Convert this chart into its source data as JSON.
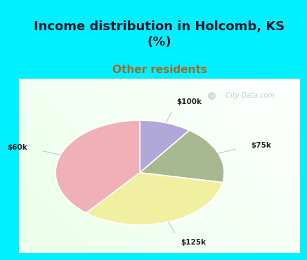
{
  "title": "Income distribution in Holcomb, KS\n(%)",
  "subtitle": "Other residents",
  "slices": [
    {
      "label": "$100k",
      "value": 10,
      "color": "#b0a8d8"
    },
    {
      "label": "$75k",
      "value": 18,
      "color": "#a8b890"
    },
    {
      "label": "$125k",
      "value": 33,
      "color": "#f0f0a0"
    },
    {
      "label": "$60k",
      "value": 39,
      "color": "#f0b0b8"
    }
  ],
  "title_fontsize": 13,
  "subtitle_fontsize": 11,
  "title_color": "#1a1a2e",
  "subtitle_color": "#aa6622",
  "title_bg": "#00f0ff",
  "watermark": "  City-Data.com",
  "watermark_color": "#aacccc"
}
